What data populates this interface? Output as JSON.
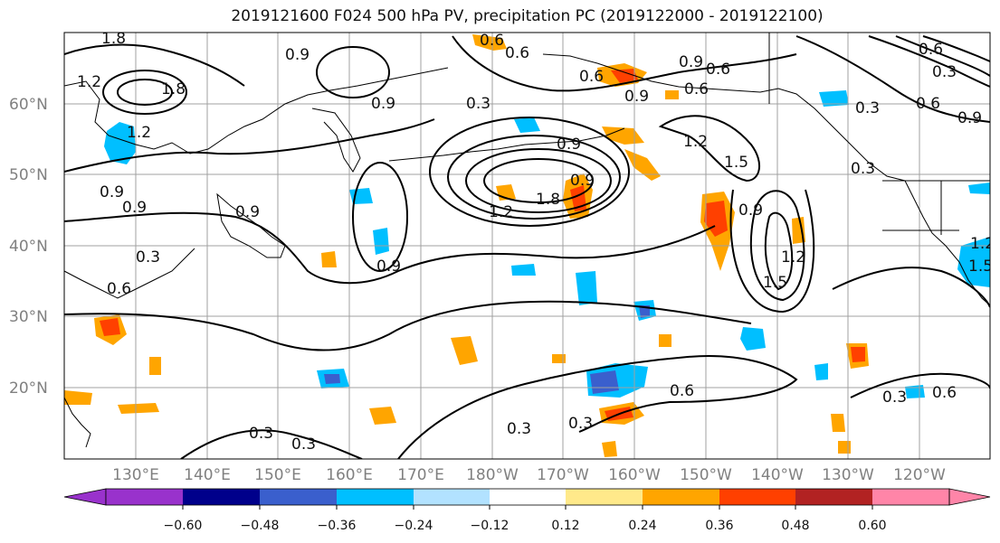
{
  "title": "2019121600 F024 500 hPa PV, precipitation PC (2019122000 - 2019122100)",
  "lat_labels": [
    "60°N",
    "50°N",
    "40°N",
    "30°N",
    "20°N"
  ],
  "lon_labels": [
    "130°E",
    "140°E",
    "150°E",
    "160°E",
    "170°E",
    "180°W",
    "170°W",
    "160°W",
    "150°W",
    "140°W",
    "130°W",
    "120°W"
  ],
  "colorbar": {
    "tick_labels": [
      "−0.60",
      "−0.48",
      "−0.36",
      "−0.24",
      "−0.12",
      "0.12",
      "0.24",
      "0.36",
      "0.48",
      "0.60"
    ],
    "colors": [
      "#9932cc",
      "#00008b",
      "#3a5fcd",
      "#00bfff",
      "#b2e2ff",
      "#ffffff",
      "#ffe98a",
      "#ffa500",
      "#ff4000",
      "#b22222",
      "#ff85a8"
    ]
  },
  "contour_labels": [
    "1.8",
    "0.9",
    "1.2",
    "1.8",
    "1.2",
    "0.9",
    "0.9",
    "0.3",
    "0.3",
    "0.6",
    "0.9",
    "0.6",
    "0.9",
    "0.6",
    "0.3",
    "0.6",
    "1.2",
    "1.5",
    "0.9",
    "0.9",
    "1.2",
    "1.8",
    "1.5",
    "1.2",
    "0.9",
    "0.6",
    "0.9",
    "1.5",
    "1.2",
    "0.3",
    "0.3",
    "0.9",
    "0.9",
    "0.6",
    "0.6",
    "0.3",
    "0.3",
    "0.3",
    "0.6",
    "0.3",
    "0.6",
    "0.6",
    "0.9",
    "0.3"
  ],
  "colors": {
    "contour": "#000000",
    "grid": "#a0a0a0",
    "coast": "#000000",
    "axis_label": "#808080"
  }
}
